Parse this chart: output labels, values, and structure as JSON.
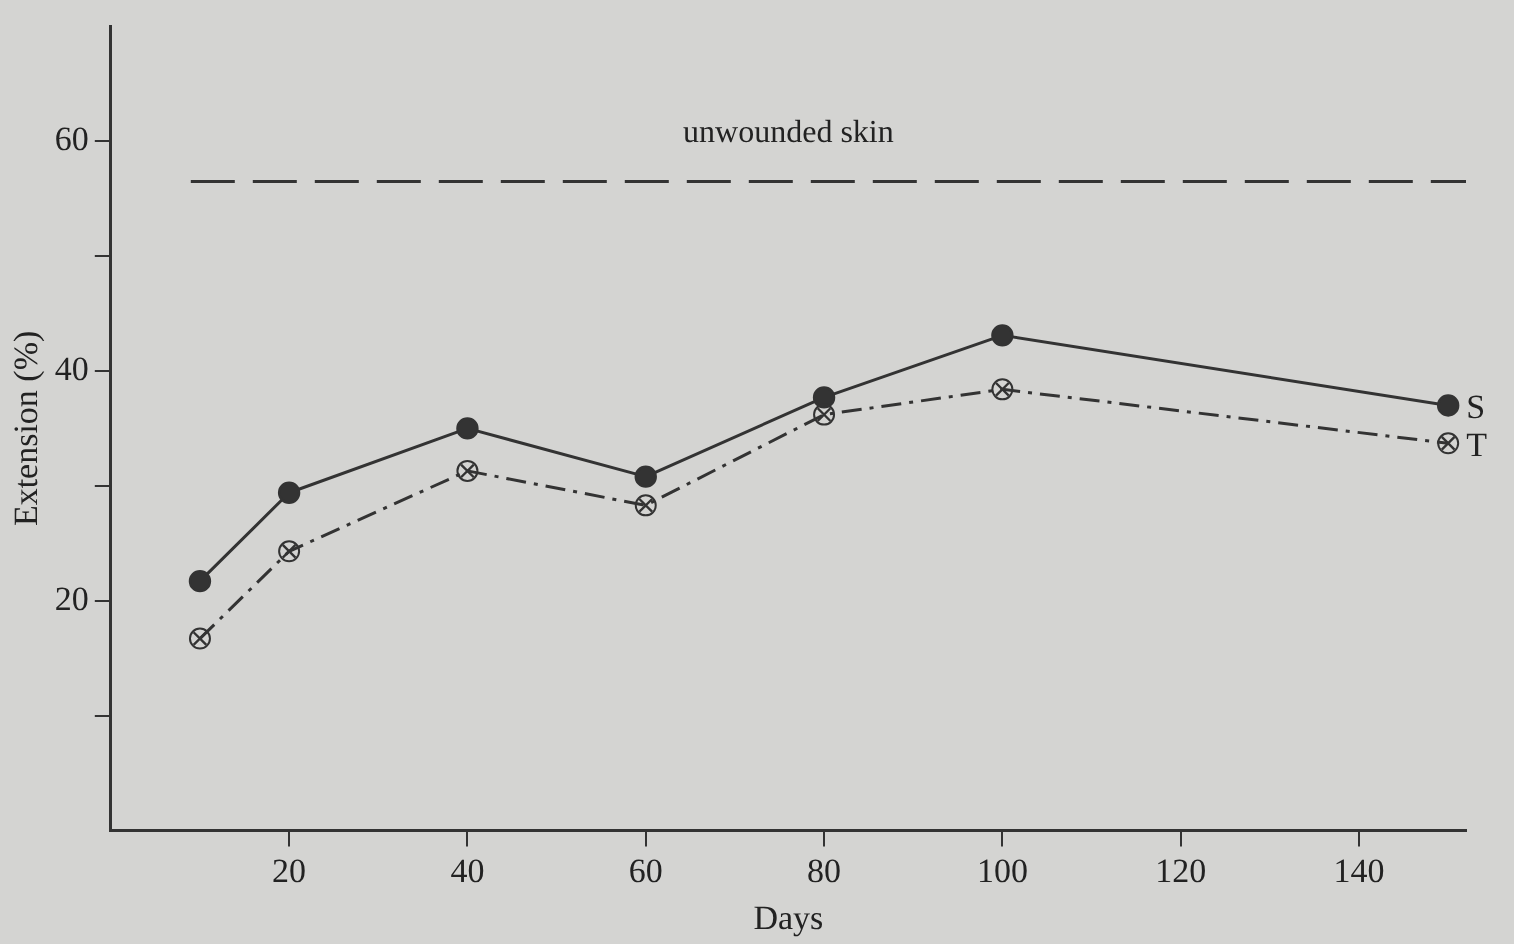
{
  "chart_data": {
    "type": "line",
    "xlabel": "Days",
    "ylabel": "Extension (%)",
    "x": [
      10,
      20,
      40,
      60,
      80,
      100,
      150
    ],
    "series": [
      {
        "name": "S",
        "color": "#333333",
        "marker": "circle",
        "line_style": "solid",
        "values": [
          21.7,
          29.4,
          35,
          30.8,
          37.7,
          43.1,
          37
        ]
      },
      {
        "name": "T",
        "color": "#333333",
        "marker": "cross",
        "line_style": "dashed",
        "values": [
          16.7,
          24.3,
          31.3,
          28.3,
          36.2,
          38.4,
          33.7
        ]
      }
    ],
    "xlim": [
      0,
      152
    ],
    "xticks": [
      20,
      40,
      60,
      80,
      100,
      120,
      140
    ],
    "ylim": [
      0,
      70
    ],
    "yticks": [
      {
        "value": 10,
        "label": null
      },
      20,
      {
        "value": 30,
        "label": null
      },
      40,
      {
        "value": 50,
        "label": null
      },
      60
    ],
    "ref_lines": [
      {
        "axis": "y",
        "value": 56.5,
        "label": "unwounded skin",
        "color": "#333333",
        "line_style": "dashed"
      }
    ],
    "grid": false,
    "legend": false
  }
}
